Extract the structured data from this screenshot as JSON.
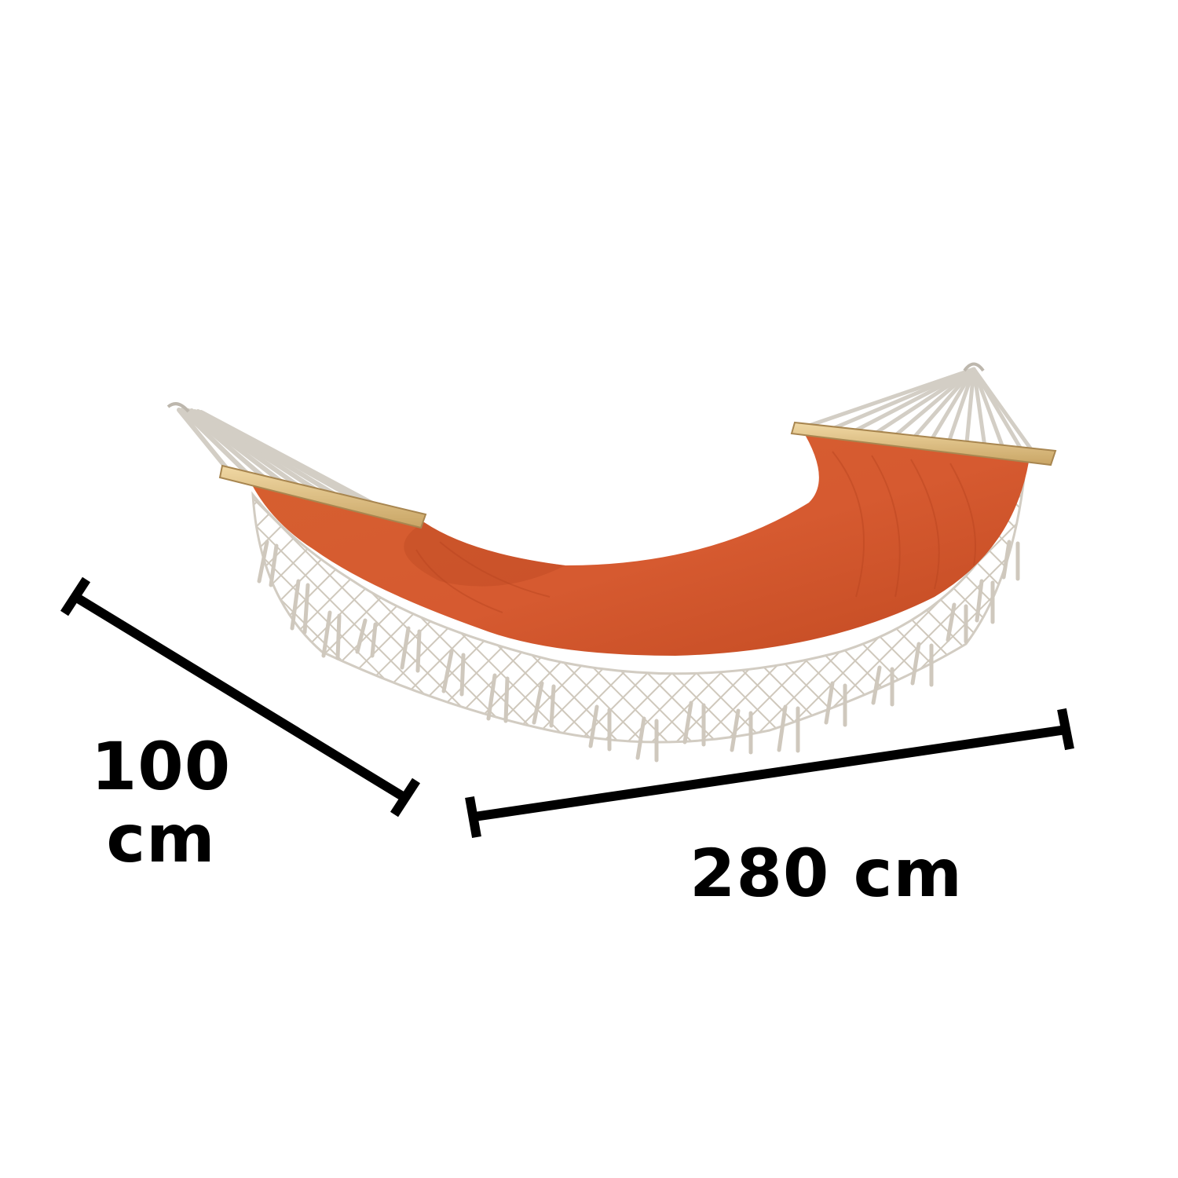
{
  "product": {
    "name_icon": "hammock-illustration",
    "fabric_color": "#D65A30",
    "fabric_shade": "#B8441F",
    "fringe_color": "#D8D2C8",
    "bar_color": "#E2C48A",
    "rope_color": "#D9D4CC"
  },
  "dimensions": {
    "width_value": "100",
    "width_unit": "cm",
    "length_label": "280 cm",
    "line_color": "#000000"
  }
}
